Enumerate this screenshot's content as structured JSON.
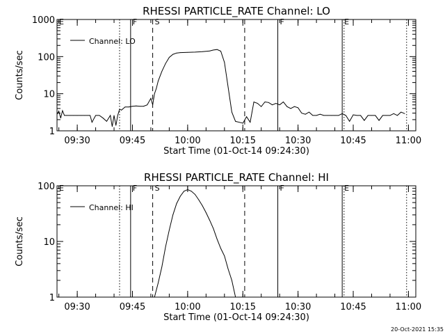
{
  "chart_data": [
    {
      "type": "line",
      "title": "RHESSI PARTICLE_RATE Channel: LO",
      "xlabel": "Start Time (01-Oct-14 09:24:30)",
      "ylabel": "Counts/sec",
      "yscale": "log",
      "xlim": [
        "09:24:30",
        "11:02:00"
      ],
      "ylim": [
        1,
        1000
      ],
      "x_ticks": [
        "09:30",
        "09:45",
        "10:00",
        "10:15",
        "10:30",
        "10:45",
        "11:00"
      ],
      "y_ticks": [
        "1",
        "10",
        "100",
        "1000"
      ],
      "legend": {
        "label": "Channel: LO",
        "position": "top-left"
      },
      "markers": [
        {
          "label": "E",
          "time": "09:24:30",
          "style": "none"
        },
        {
          "label": "",
          "time": "09:41:30",
          "style": "dotted"
        },
        {
          "label": "F",
          "time": "09:44:30",
          "style": "solid"
        },
        {
          "label": "S",
          "time": "09:50:30",
          "style": "dashed"
        },
        {
          "label": "",
          "time": "10:15:30",
          "style": "dashed"
        },
        {
          "label": "F",
          "time": "10:24:30",
          "style": "solid"
        },
        {
          "label": "E",
          "time": "10:42:00",
          "style": "solid"
        },
        {
          "label": "",
          "time": "10:42:30",
          "style": "dotted"
        },
        {
          "label": "",
          "time": "10:59:30",
          "style": "dotted"
        }
      ],
      "series": [
        {
          "name": "Channel: LO",
          "x": [
            "09:24:30",
            "09:25:00",
            "09:25:30",
            "09:26:00",
            "09:26:30",
            "09:27:00",
            "09:28:00",
            "09:29:00",
            "09:30:00",
            "09:31:00",
            "09:32:00",
            "09:33:00",
            "09:33:30",
            "09:34:00",
            "09:35:00",
            "09:36:00",
            "09:37:00",
            "09:38:00",
            "09:39:00",
            "09:39:30",
            "09:40:00",
            "09:40:30",
            "09:41:00",
            "09:41:30",
            "09:42:00",
            "09:43:00",
            "09:44:00",
            "09:45:00",
            "09:46:00",
            "09:47:00",
            "09:48:00",
            "09:49:00",
            "09:50:00",
            "09:50:30",
            "09:51:00",
            "09:51:30",
            "09:52:00",
            "09:53:00",
            "09:54:00",
            "09:55:00",
            "09:56:00",
            "09:57:00",
            "09:58:00",
            "10:00:00",
            "10:02:00",
            "10:04:00",
            "10:06:00",
            "10:07:00",
            "10:08:00",
            "10:09:00",
            "10:10:00",
            "10:11:00",
            "10:12:00",
            "10:13:00",
            "10:14:00",
            "10:15:00",
            "10:16:00",
            "10:17:00",
            "10:18:00",
            "10:19:00",
            "10:20:00",
            "10:21:00",
            "10:22:00",
            "10:23:00",
            "10:24:00",
            "10:25:00",
            "10:26:00",
            "10:27:00",
            "10:28:00",
            "10:29:00",
            "10:30:00",
            "10:31:00",
            "10:32:00",
            "10:33:00",
            "10:34:00",
            "10:35:00",
            "10:36:00",
            "10:37:00",
            "10:38:00",
            "10:39:00",
            "10:40:00",
            "10:41:00",
            "10:42:00",
            "10:43:00",
            "10:44:00",
            "10:45:00",
            "10:46:00",
            "10:47:00",
            "10:48:00",
            "10:49:00",
            "10:50:00",
            "10:51:00",
            "10:52:00",
            "10:53:00",
            "10:54:00",
            "10:55:00",
            "10:56:00",
            "10:57:00",
            "10:58:00",
            "10:59:00"
          ],
          "y": [
            2.8,
            3.4,
            2.2,
            3.5,
            2.6,
            2.6,
            2.6,
            2.6,
            2.6,
            2.6,
            2.6,
            2.6,
            2.6,
            1.7,
            2.6,
            2.6,
            2.2,
            1.8,
            2.6,
            1.3,
            2.6,
            1.4,
            2.6,
            3.8,
            3.6,
            4.4,
            4.4,
            4.6,
            4.7,
            4.6,
            4.6,
            5.0,
            7.5,
            5.0,
            10,
            14,
            22,
            40,
            65,
            95,
            115,
            125,
            128,
            130,
            132,
            136,
            142,
            150,
            155,
            140,
            70,
            15,
            3.2,
            1.8,
            1.7,
            1.6,
            2.4,
            1.7,
            6.0,
            5.5,
            4.5,
            6.0,
            5.8,
            5.0,
            5.5,
            5.0,
            6.0,
            4.5,
            4.0,
            4.5,
            4.2,
            3.0,
            2.8,
            3.2,
            2.6,
            2.6,
            2.8,
            2.6,
            2.6,
            2.6,
            2.6,
            2.6,
            2.9,
            2.6,
            1.8,
            2.7,
            2.6,
            2.6,
            1.9,
            2.6,
            2.6,
            2.6,
            1.9,
            2.6,
            2.6,
            2.6,
            2.9,
            2.6,
            3.2,
            2.9
          ]
        }
      ]
    },
    {
      "type": "line",
      "title": "RHESSI PARTICLE_RATE Channel: HI",
      "xlabel": "Start Time (01-Oct-14 09:24:30)",
      "ylabel": "Counts/sec",
      "yscale": "log",
      "xlim": [
        "09:24:30",
        "11:02:00"
      ],
      "ylim": [
        1,
        100
      ],
      "x_ticks": [
        "09:30",
        "09:45",
        "10:00",
        "10:15",
        "10:30",
        "10:45",
        "11:00"
      ],
      "y_ticks": [
        "1",
        "10",
        "100"
      ],
      "legend": {
        "label": "Channel: HI",
        "position": "top-left"
      },
      "markers": [
        {
          "label": "E",
          "time": "09:24:30",
          "style": "none"
        },
        {
          "label": "",
          "time": "09:41:30",
          "style": "dotted"
        },
        {
          "label": "F",
          "time": "09:44:30",
          "style": "solid"
        },
        {
          "label": "S",
          "time": "09:50:30",
          "style": "dashed"
        },
        {
          "label": "",
          "time": "10:15:30",
          "style": "dashed"
        },
        {
          "label": "F",
          "time": "10:24:30",
          "style": "solid"
        },
        {
          "label": "E",
          "time": "10:42:00",
          "style": "solid"
        },
        {
          "label": "",
          "time": "10:42:30",
          "style": "dotted"
        },
        {
          "label": "",
          "time": "10:59:30",
          "style": "dotted"
        }
      ],
      "series": [
        {
          "name": "Channel: HI",
          "x": [
            "09:51:00",
            "09:52:00",
            "09:53:00",
            "09:54:00",
            "09:55:00",
            "09:56:00",
            "09:57:00",
            "09:58:00",
            "09:59:00",
            "10:00:00",
            "10:01:00",
            "10:02:00",
            "10:03:00",
            "10:04:00",
            "10:05:00",
            "10:06:00",
            "10:07:00",
            "10:08:00",
            "10:09:00",
            "10:10:00",
            "10:11:00",
            "10:12:00",
            "10:13:00"
          ],
          "y": [
            1.0,
            1.8,
            3.5,
            8,
            16,
            30,
            48,
            65,
            80,
            85,
            80,
            70,
            56,
            44,
            33,
            24,
            17,
            11,
            7.5,
            5.5,
            3.2,
            2.0,
            1.0
          ]
        }
      ]
    }
  ],
  "footer": {
    "stamp": "20-Oct-2021 15:35"
  }
}
